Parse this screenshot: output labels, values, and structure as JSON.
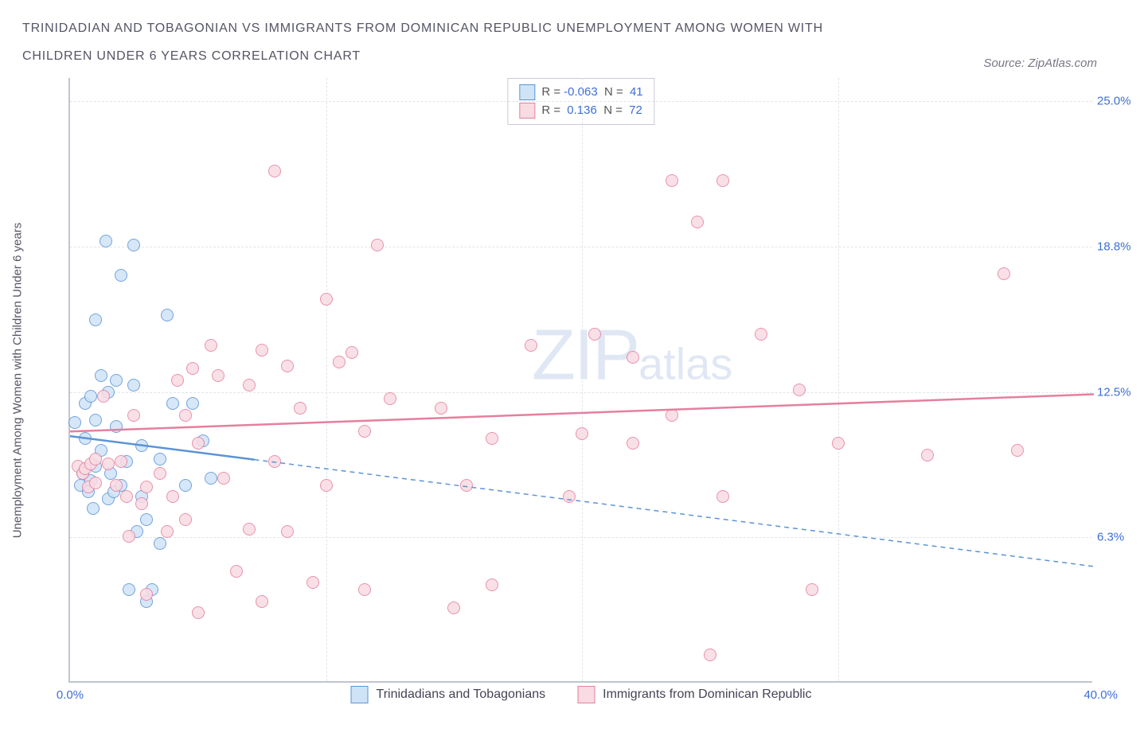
{
  "header": {
    "title": "TRINIDADIAN AND TOBAGONIAN VS IMMIGRANTS FROM DOMINICAN REPUBLIC UNEMPLOYMENT AMONG WOMEN WITH CHILDREN UNDER 6 YEARS CORRELATION CHART",
    "source": "Source: ZipAtlas.com"
  },
  "chart": {
    "type": "scatter",
    "ylabel": "Unemployment Among Women with Children Under 6 years",
    "xlim": [
      0,
      40
    ],
    "ylim": [
      0,
      26
    ],
    "xtick_positions": [
      0,
      10,
      20,
      30,
      40
    ],
    "xtick_labels": [
      "0.0%",
      "",
      "",
      "",
      "40.0%"
    ],
    "ytick_positions": [
      6.25,
      12.5,
      18.75,
      25.0
    ],
    "ytick_labels": [
      "6.3%",
      "12.5%",
      "18.8%",
      "25.0%"
    ],
    "grid_color": "#e2e5eb",
    "axis_color": "#bfc5d0",
    "background_color": "#ffffff",
    "point_radius": 8,
    "series": [
      {
        "name": "Trinidadians and Tobagonians",
        "fill": "#cfe3f7",
        "stroke": "#5b94d6",
        "r_value": "-0.063",
        "n_value": "41",
        "trend": {
          "x1": 0,
          "y1": 10.6,
          "x2": 40,
          "y2": 5.0,
          "solid_until_x": 7.2
        },
        "points": [
          [
            0.2,
            11.2
          ],
          [
            0.4,
            8.5
          ],
          [
            0.5,
            9.0
          ],
          [
            0.6,
            10.5
          ],
          [
            0.6,
            12.0
          ],
          [
            0.7,
            8.2
          ],
          [
            0.8,
            8.7
          ],
          [
            0.8,
            12.3
          ],
          [
            0.9,
            7.5
          ],
          [
            1.0,
            9.3
          ],
          [
            1.0,
            11.3
          ],
          [
            1.0,
            15.6
          ],
          [
            1.2,
            10.0
          ],
          [
            1.2,
            13.2
          ],
          [
            1.4,
            19.0
          ],
          [
            1.5,
            7.9
          ],
          [
            1.5,
            12.5
          ],
          [
            1.6,
            9.0
          ],
          [
            1.7,
            8.2
          ],
          [
            1.8,
            11.0
          ],
          [
            1.8,
            13.0
          ],
          [
            2.0,
            17.5
          ],
          [
            2.0,
            8.5
          ],
          [
            2.2,
            9.5
          ],
          [
            2.3,
            4.0
          ],
          [
            2.5,
            18.8
          ],
          [
            2.5,
            12.8
          ],
          [
            2.6,
            6.5
          ],
          [
            2.8,
            10.2
          ],
          [
            2.8,
            8.0
          ],
          [
            3.0,
            3.5
          ],
          [
            3.0,
            7.0
          ],
          [
            3.2,
            4.0
          ],
          [
            3.5,
            9.6
          ],
          [
            3.5,
            6.0
          ],
          [
            3.8,
            15.8
          ],
          [
            4.0,
            12.0
          ],
          [
            4.8,
            12.0
          ],
          [
            4.5,
            8.5
          ],
          [
            5.2,
            10.4
          ],
          [
            5.5,
            8.8
          ]
        ]
      },
      {
        "name": "Immigrants from Dominican Republic",
        "fill": "#f9dbe3",
        "stroke": "#e57f9e",
        "r_value": "0.136",
        "n_value": "72",
        "trend": {
          "x1": 0,
          "y1": 10.8,
          "x2": 40,
          "y2": 12.4,
          "solid_until_x": 40
        },
        "points": [
          [
            0.3,
            9.3
          ],
          [
            0.5,
            9.0
          ],
          [
            0.6,
            9.2
          ],
          [
            0.7,
            8.4
          ],
          [
            0.8,
            9.4
          ],
          [
            1.0,
            8.6
          ],
          [
            1.0,
            9.6
          ],
          [
            1.3,
            12.3
          ],
          [
            1.5,
            9.4
          ],
          [
            1.8,
            8.5
          ],
          [
            2.0,
            9.5
          ],
          [
            2.2,
            8.0
          ],
          [
            2.3,
            6.3
          ],
          [
            2.5,
            11.5
          ],
          [
            2.8,
            7.7
          ],
          [
            3.0,
            8.4
          ],
          [
            3.0,
            3.8
          ],
          [
            3.5,
            9.0
          ],
          [
            3.8,
            6.5
          ],
          [
            4.0,
            8.0
          ],
          [
            4.2,
            13.0
          ],
          [
            4.5,
            7.0
          ],
          [
            4.5,
            11.5
          ],
          [
            4.8,
            13.5
          ],
          [
            5.0,
            10.3
          ],
          [
            5.0,
            3.0
          ],
          [
            5.5,
            14.5
          ],
          [
            5.8,
            13.2
          ],
          [
            6.0,
            8.8
          ],
          [
            6.5,
            4.8
          ],
          [
            7.0,
            12.8
          ],
          [
            7.0,
            6.6
          ],
          [
            7.5,
            14.3
          ],
          [
            7.5,
            3.5
          ],
          [
            8.0,
            9.5
          ],
          [
            8.0,
            22.0
          ],
          [
            8.5,
            13.6
          ],
          [
            8.5,
            6.5
          ],
          [
            9.0,
            11.8
          ],
          [
            9.5,
            4.3
          ],
          [
            10.0,
            16.5
          ],
          [
            10.0,
            8.5
          ],
          [
            10.5,
            13.8
          ],
          [
            11.0,
            14.2
          ],
          [
            11.5,
            4.0
          ],
          [
            11.5,
            10.8
          ],
          [
            12.0,
            18.8
          ],
          [
            12.5,
            12.2
          ],
          [
            14.5,
            11.8
          ],
          [
            15.0,
            3.2
          ],
          [
            15.5,
            8.5
          ],
          [
            16.5,
            4.2
          ],
          [
            16.5,
            10.5
          ],
          [
            18.0,
            14.5
          ],
          [
            19.5,
            8.0
          ],
          [
            20.0,
            10.7
          ],
          [
            20.5,
            15.0
          ],
          [
            22.0,
            10.3
          ],
          [
            22.0,
            14.0
          ],
          [
            23.5,
            21.6
          ],
          [
            23.5,
            11.5
          ],
          [
            24.5,
            19.8
          ],
          [
            25.0,
            1.2
          ],
          [
            25.5,
            21.6
          ],
          [
            25.5,
            8.0
          ],
          [
            27.0,
            15.0
          ],
          [
            28.5,
            12.6
          ],
          [
            29.0,
            4.0
          ],
          [
            30.0,
            10.3
          ],
          [
            33.5,
            9.8
          ],
          [
            36.5,
            17.6
          ],
          [
            37.0,
            10.0
          ]
        ]
      }
    ],
    "bottom_legend": [
      {
        "label": "Trinidadians and Tobagonians",
        "fill": "#cfe3f7",
        "stroke": "#5b94d6"
      },
      {
        "label": "Immigrants from Dominican Republic",
        "fill": "#f9dbe3",
        "stroke": "#e57f9e"
      }
    ],
    "watermark": {
      "big": "ZIP",
      "small": "atlas"
    }
  }
}
